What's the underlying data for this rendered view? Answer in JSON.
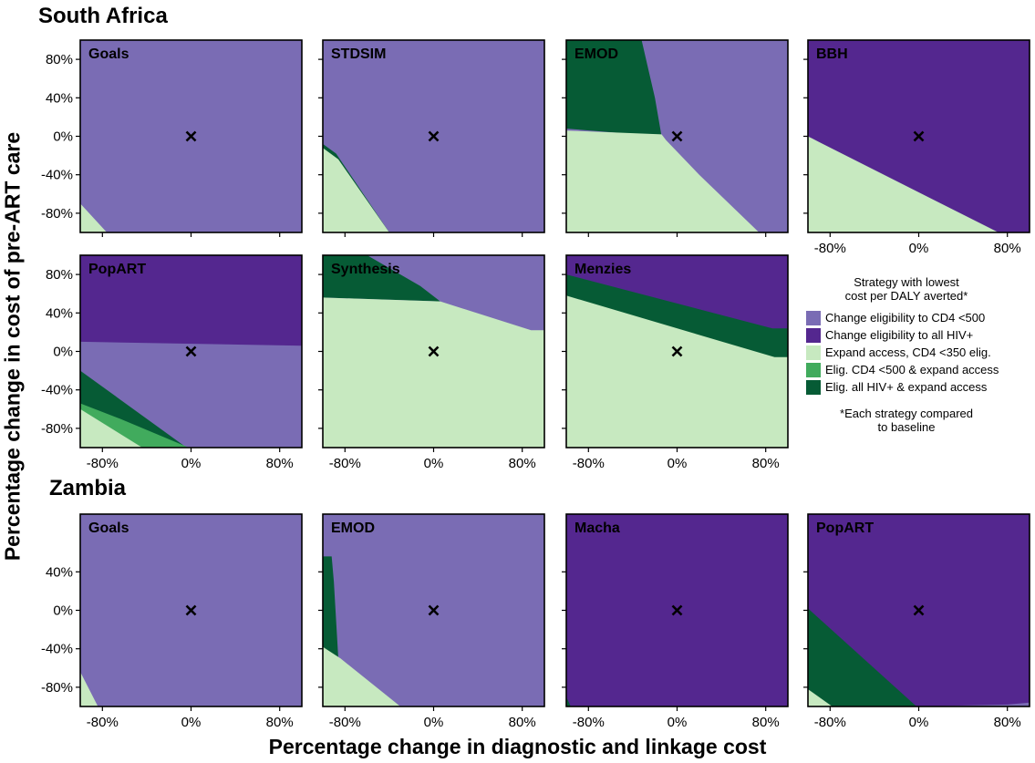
{
  "chart_data": {
    "type": "heatmap",
    "x_axis": {
      "label": "Percentage change in diagnostic and linkage cost",
      "range": [
        -100,
        100
      ],
      "ticks": [
        -80,
        0,
        80
      ],
      "tick_labels": [
        "-80%",
        "0%",
        "80%"
      ]
    },
    "y_axis": {
      "label": "Percentage change in cost of pre-ART care",
      "range": [
        -100,
        100
      ]
    },
    "baseline_marker": {
      "x": 0,
      "y": 0,
      "symbol": "×"
    },
    "strategies": [
      {
        "key": "c500",
        "label": "Change eligibility to CD4 <500",
        "color": "#7a6cb4"
      },
      {
        "key": "all",
        "label": "Change eligibility to all HIV+",
        "color": "#54278f"
      },
      {
        "key": "exp350",
        "label": "Expand access, CD4 <350 elig.",
        "color": "#c7e9c0"
      },
      {
        "key": "c500exp",
        "label": "Elig. CD4 <500 & expand access",
        "color": "#41ab5d"
      },
      {
        "key": "allexp",
        "label": "Elig. all HIV+ & expand access",
        "color": "#065b35"
      }
    ],
    "legend": {
      "title_lines": [
        "Strategy with lowest",
        "cost per DALY averted*"
      ],
      "footnote_lines": [
        "*Each strategy compared",
        "to baseline"
      ],
      "placement": "right"
    },
    "regions": [
      {
        "name": "South Africa",
        "y_ticks": [
          80,
          40,
          0,
          -40,
          -80
        ],
        "y_tick_labels": [
          "80%",
          "40%",
          "0%",
          "-40%",
          "-80%"
        ],
        "panels": [
          {
            "model": "Goals",
            "background": "c500",
            "areas": [
              {
                "strategy": "exp350",
                "polygon": [
                  [
                    -100,
                    -100
                  ],
                  [
                    -100,
                    -70
                  ],
                  [
                    -76,
                    -100
                  ]
                ]
              }
            ]
          },
          {
            "model": "STDSIM",
            "background": "c500",
            "areas": [
              {
                "strategy": "allexp",
                "polygon": [
                  [
                    -100,
                    -100
                  ],
                  [
                    -100,
                    -8
                  ],
                  [
                    -88,
                    -18
                  ],
                  [
                    -40,
                    -100
                  ]
                ]
              },
              {
                "strategy": "exp350",
                "polygon": [
                  [
                    -100,
                    -100
                  ],
                  [
                    -100,
                    -12
                  ],
                  [
                    -86,
                    -24
                  ],
                  [
                    -40,
                    -100
                  ]
                ]
              }
            ]
          },
          {
            "model": "EMOD",
            "background": "c500",
            "areas": [
              {
                "strategy": "allexp",
                "polygon": [
                  [
                    -100,
                    100
                  ],
                  [
                    -88,
                    100
                  ],
                  [
                    -88,
                    100
                  ],
                  [
                    -32,
                    100
                  ],
                  [
                    -26,
                    70
                  ],
                  [
                    -20,
                    40
                  ],
                  [
                    -14,
                    0
                  ],
                  [
                    -100,
                    8
                  ]
                ]
              },
              {
                "strategy": "exp350",
                "polygon": [
                  [
                    -100,
                    -100
                  ],
                  [
                    -100,
                    6
                  ],
                  [
                    -14,
                    2
                  ],
                  [
                    -10,
                    -4
                  ],
                  [
                    20,
                    -40
                  ],
                  [
                    74,
                    -100
                  ]
                ]
              }
            ]
          },
          {
            "model": "BBH",
            "background": "all",
            "areas": [
              {
                "strategy": "exp350",
                "polygon": [
                  [
                    -100,
                    -100
                  ],
                  [
                    -100,
                    0
                  ],
                  [
                    -90,
                    -6
                  ],
                  [
                    72,
                    -100
                  ]
                ]
              }
            ]
          },
          {
            "model": "PopART",
            "background": "all",
            "areas": [
              {
                "strategy": "c500",
                "polygon": [
                  [
                    -100,
                    -100
                  ],
                  [
                    -100,
                    10
                  ],
                  [
                    100,
                    6
                  ],
                  [
                    100,
                    -100
                  ]
                ]
              },
              {
                "strategy": "allexp",
                "polygon": [
                  [
                    -100,
                    -100
                  ],
                  [
                    -100,
                    -20
                  ],
                  [
                    -4,
                    -100
                  ]
                ]
              },
              {
                "strategy": "c500exp",
                "polygon": [
                  [
                    -100,
                    -100
                  ],
                  [
                    -100,
                    -54
                  ],
                  [
                    -64,
                    -70
                  ],
                  [
                    -2,
                    -100
                  ]
                ]
              },
              {
                "strategy": "exp350",
                "polygon": [
                  [
                    -100,
                    -100
                  ],
                  [
                    -100,
                    -60
                  ],
                  [
                    -44,
                    -100
                  ]
                ]
              }
            ]
          },
          {
            "model": "Synthesis",
            "background": "c500",
            "areas": [
              {
                "strategy": "allexp",
                "polygon": [
                  [
                    -100,
                    100
                  ],
                  [
                    -60,
                    100
                  ],
                  [
                    -12,
                    68
                  ],
                  [
                    6,
                    52
                  ],
                  [
                    -100,
                    56
                  ]
                ]
              },
              {
                "strategy": "exp350",
                "polygon": [
                  [
                    -100,
                    -100
                  ],
                  [
                    -100,
                    56
                  ],
                  [
                    6,
                    52
                  ],
                  [
                    88,
                    22
                  ],
                  [
                    100,
                    22
                  ],
                  [
                    100,
                    -100
                  ]
                ]
              }
            ]
          },
          {
            "model": "Menzies",
            "background": "all",
            "areas": [
              {
                "strategy": "allexp",
                "polygon": [
                  [
                    -100,
                    -100
                  ],
                  [
                    -100,
                    80
                  ],
                  [
                    86,
                    24
                  ],
                  [
                    100,
                    24
                  ],
                  [
                    100,
                    -100
                  ]
                ]
              },
              {
                "strategy": "exp350",
                "polygon": [
                  [
                    -100,
                    -100
                  ],
                  [
                    -100,
                    58
                  ],
                  [
                    88,
                    -6
                  ],
                  [
                    100,
                    -6
                  ],
                  [
                    100,
                    -100
                  ]
                ]
              }
            ]
          }
        ]
      },
      {
        "name": "Zambia",
        "y_ticks": [
          40,
          0,
          -40,
          -80
        ],
        "y_tick_labels": [
          "40%",
          "0%",
          "-40%",
          "-80%"
        ],
        "panels": [
          {
            "model": "Goals",
            "background": "c500",
            "areas": [
              {
                "strategy": "exp350",
                "polygon": [
                  [
                    -100,
                    -100
                  ],
                  [
                    -100,
                    -64
                  ],
                  [
                    -84,
                    -100
                  ]
                ]
              }
            ]
          },
          {
            "model": "EMOD",
            "background": "c500",
            "areas": [
              {
                "strategy": "allexp",
                "polygon": [
                  [
                    -100,
                    -100
                  ],
                  [
                    -100,
                    56
                  ],
                  [
                    -92,
                    56
                  ],
                  [
                    -90,
                    30
                  ],
                  [
                    -86,
                    -50
                  ],
                  [
                    -30,
                    -100
                  ]
                ]
              },
              {
                "strategy": "exp350",
                "polygon": [
                  [
                    -100,
                    -100
                  ],
                  [
                    -100,
                    -38
                  ],
                  [
                    -84,
                    -50
                  ],
                  [
                    -30,
                    -100
                  ]
                ]
              }
            ]
          },
          {
            "model": "Macha",
            "background": "all",
            "areas": [
              {
                "strategy": "allexp",
                "polygon": [
                  [
                    -100,
                    -100
                  ],
                  [
                    -100,
                    -90
                  ],
                  [
                    -96,
                    -100
                  ]
                ]
              }
            ]
          },
          {
            "model": "PopART",
            "background": "all",
            "areas": [
              {
                "strategy": "allexp",
                "polygon": [
                  [
                    -100,
                    -100
                  ],
                  [
                    -100,
                    2
                  ],
                  [
                    -2,
                    -100
                  ]
                ]
              },
              {
                "strategy": "exp350",
                "polygon": [
                  [
                    -100,
                    -100
                  ],
                  [
                    -100,
                    -82
                  ],
                  [
                    -78,
                    -100
                  ]
                ]
              },
              {
                "strategy": "c500",
                "polygon": [
                  [
                    -2,
                    -100
                  ],
                  [
                    80,
                    -98
                  ],
                  [
                    100,
                    -96
                  ],
                  [
                    100,
                    -100
                  ]
                ]
              }
            ]
          }
        ]
      }
    ]
  }
}
